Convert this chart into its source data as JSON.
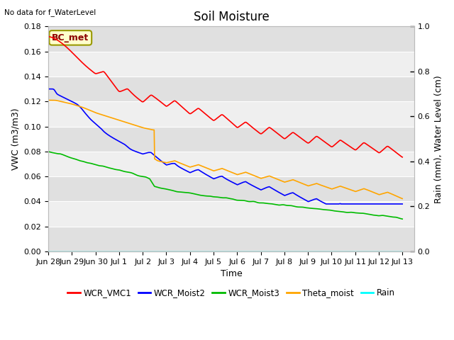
{
  "title": "Soil Moisture",
  "top_left_text": "No data for f_WaterLevel",
  "annotation_text": "BC_met",
  "xlabel": "Time",
  "ylabel_left": "VWC (m3/m3)",
  "ylabel_right": "Rain (mm), Water Level (cm)",
  "ylim_left": [
    0.0,
    0.18
  ],
  "ylim_right": [
    0.0,
    1.0
  ],
  "xtick_labels": [
    "Jun 28",
    "Jun 29",
    "Jun 30",
    "Jul 1",
    "Jul 2",
    "Jul 3",
    "Jul 4",
    "Jul 5",
    "Jul 6",
    "Jul 7",
    "Jul 8",
    "Jul 9",
    "Jul 10",
    "Jul 11",
    "Jul 12",
    "Jul 13"
  ],
  "colors": {
    "WCR_VMC1": "#ff0000",
    "WCR_Moist2": "#0000ff",
    "WCR_Moist3": "#00bb00",
    "Theta_moist": "#ffa500",
    "Rain": "#00ffff"
  },
  "band_colors": [
    "#e0e0e0",
    "#efefef"
  ],
  "background_color": "#ffffff",
  "title_fontsize": 12,
  "axis_fontsize": 9,
  "tick_fontsize": 8,
  "yticks": [
    0.0,
    0.02,
    0.04,
    0.06,
    0.08,
    0.1,
    0.12,
    0.14,
    0.16,
    0.18
  ],
  "yticks_right": [
    0.0,
    0.2,
    0.4,
    0.6,
    0.8,
    1.0
  ]
}
